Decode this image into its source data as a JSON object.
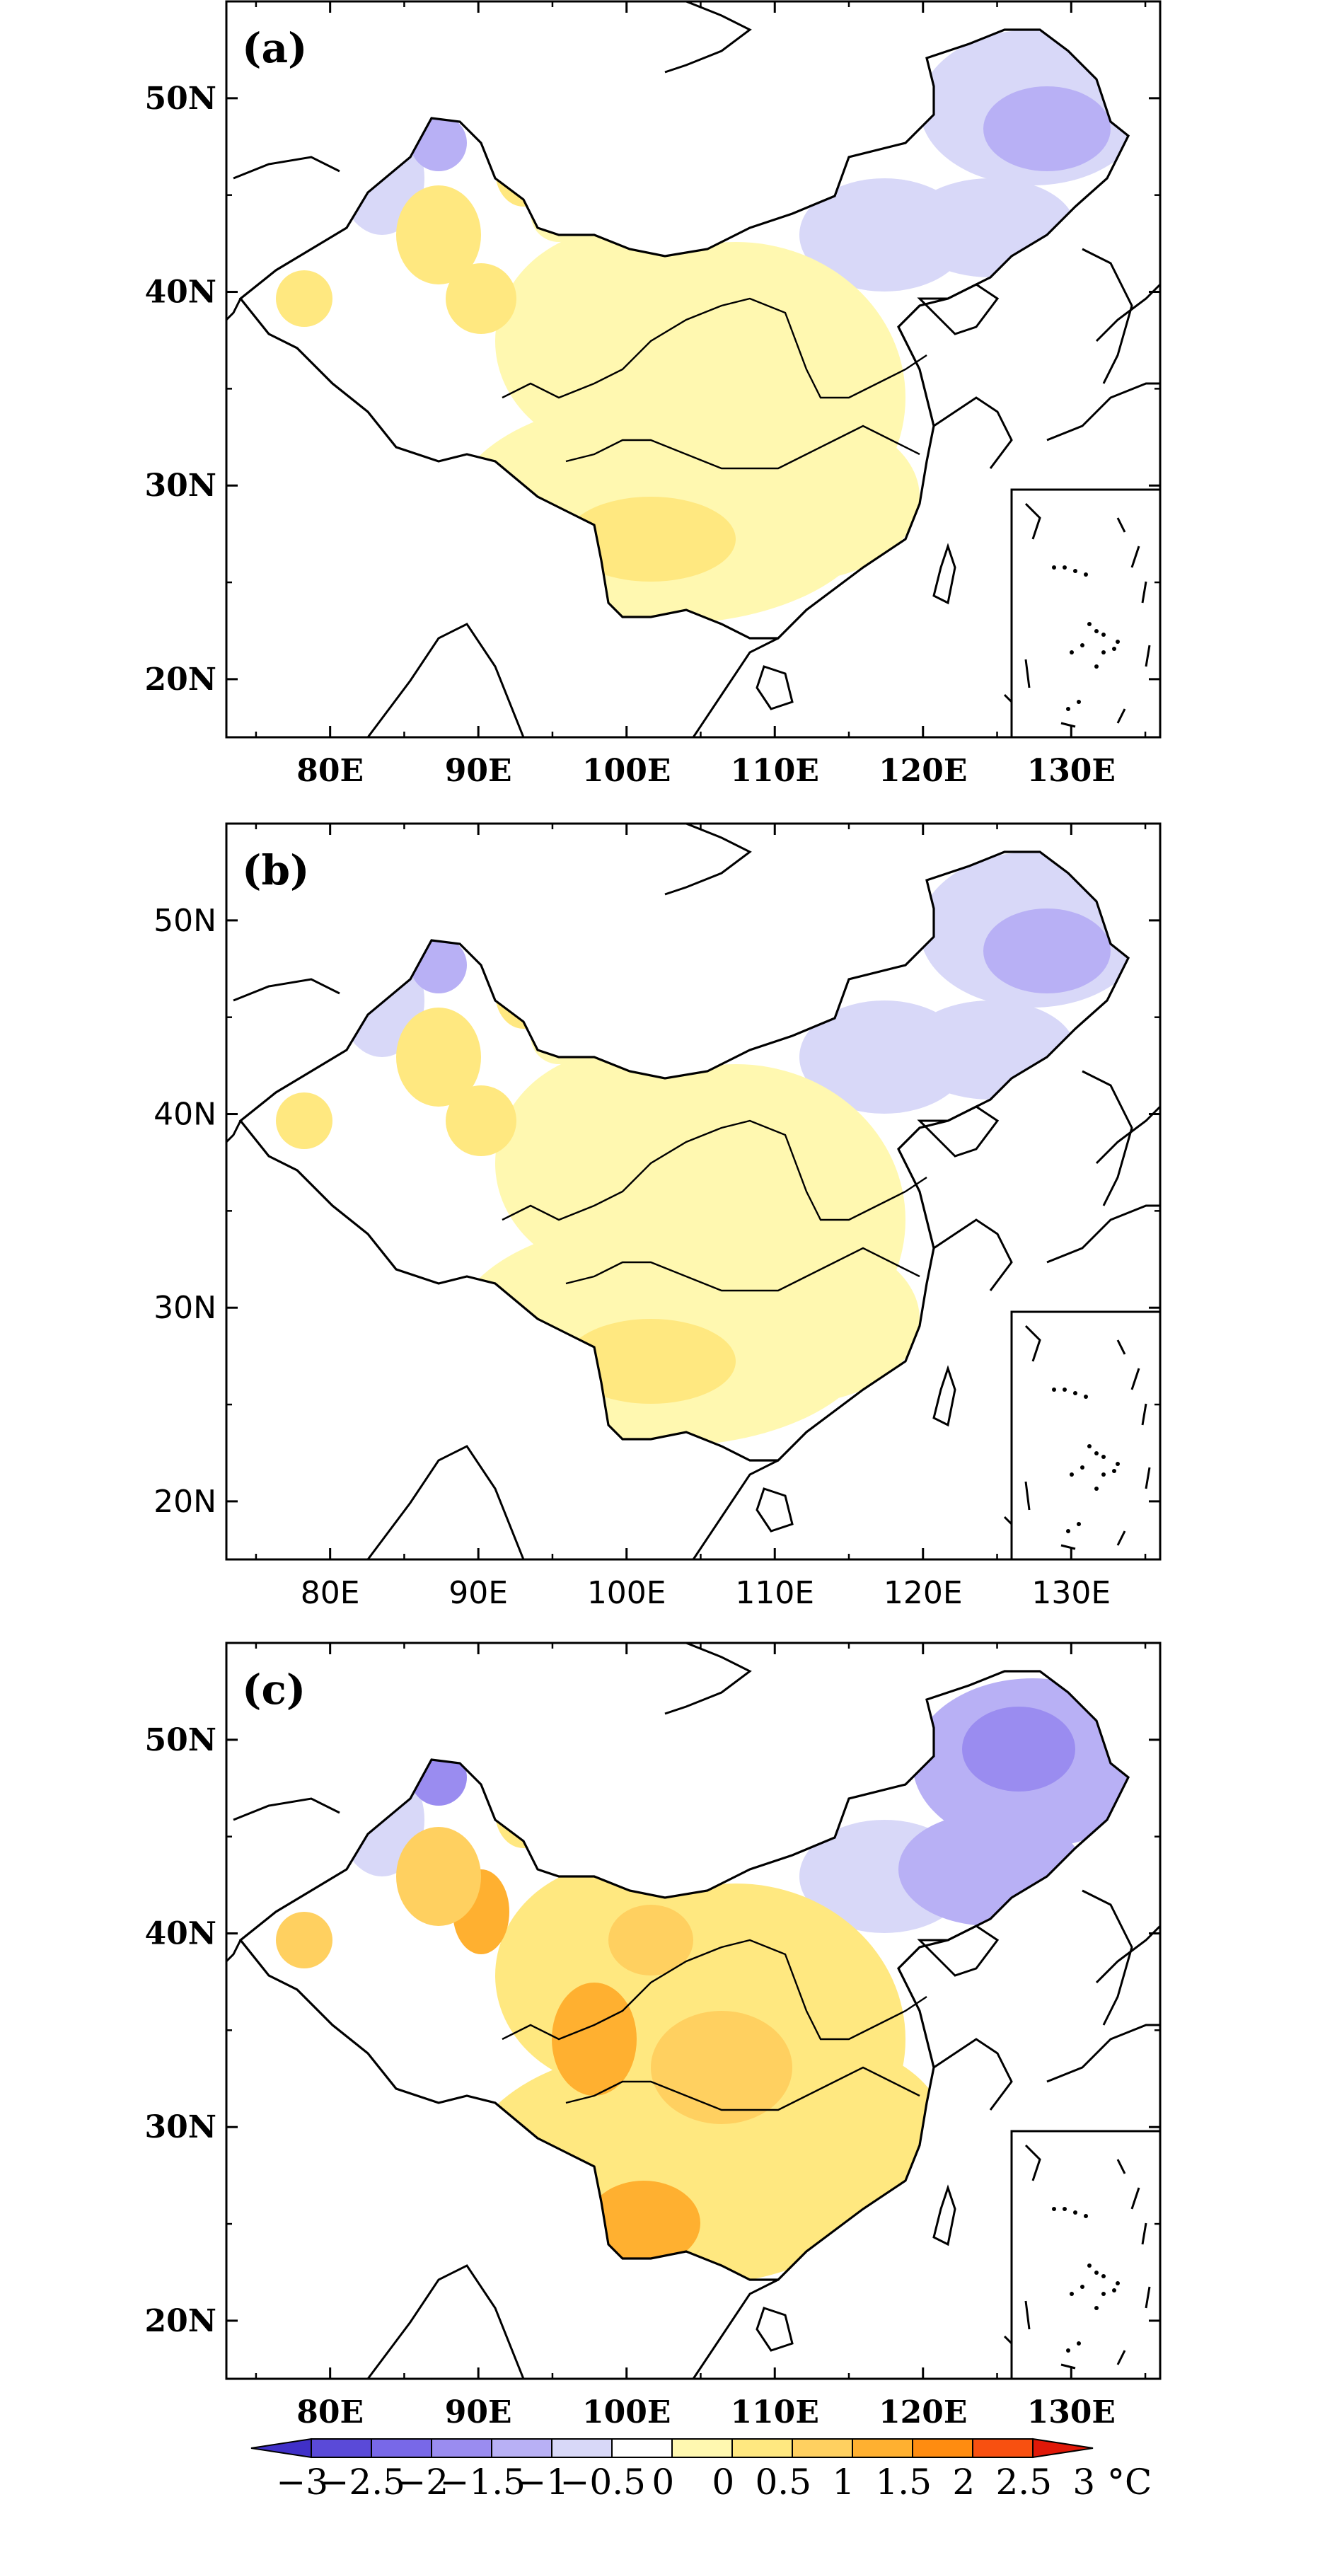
{
  "map": {
    "lon_range": [
      73,
      136
    ],
    "lat_range": [
      17,
      55
    ],
    "lon_ticks": [
      "80E",
      "90E",
      "100E",
      "110E",
      "120E",
      "130E"
    ],
    "lat_ticks": [
      "20N",
      "30N",
      "40N",
      "50N"
    ],
    "panels": [
      {
        "label": "(a)",
        "tick_style": "bold"
      },
      {
        "label": "(b)",
        "tick_style": "plain"
      },
      {
        "label": "(c)",
        "tick_style": "bold"
      }
    ]
  },
  "colorbar": {
    "labels": [
      "−3",
      "−2.5",
      "−2",
      "−1.5",
      "−1",
      "−0.5",
      "0",
      "0",
      "0.5",
      "1",
      "1.5",
      "2",
      "2.5",
      "3"
    ],
    "unit": "°C",
    "colors": [
      "#4030c8",
      "#5a4ad8",
      "#7868e8",
      "#9a8cf0",
      "#b8b0f5",
      "#d8d8f8",
      "#ffffff",
      "#fff8b0",
      "#ffe880",
      "#ffd060",
      "#ffb030",
      "#ff8c10",
      "#f85010",
      "#e01808"
    ]
  }
}
